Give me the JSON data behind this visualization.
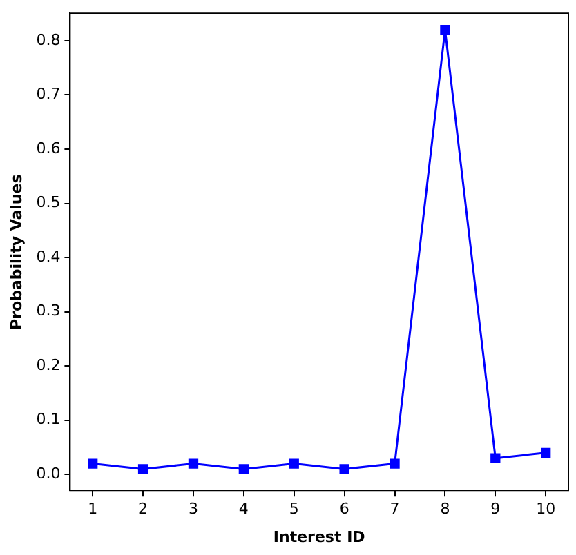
{
  "chart_data": {
    "type": "line",
    "xlabel": "Interest ID",
    "ylabel": "Probability Values",
    "x": [
      1,
      2,
      3,
      4,
      5,
      6,
      7,
      8,
      9,
      10
    ],
    "series": [
      {
        "color": "#0000ff",
        "values": [
          0.02,
          0.01,
          0.02,
          0.01,
          0.02,
          0.01,
          0.02,
          0.82,
          0.03,
          0.04
        ]
      }
    ],
    "xlim": [
      0.55,
      10.45
    ],
    "xticks": [
      1,
      2,
      3,
      4,
      5,
      6,
      7,
      8,
      9,
      10
    ],
    "ylim": [
      -0.0305,
      0.8505
    ],
    "yticks": [
      {
        "value": 0,
        "label": "0.0"
      },
      0.1,
      0.2,
      0.3,
      0.4,
      0.5,
      0.6,
      0.7,
      0.8
    ],
    "marker": "square",
    "line_style": "solid",
    "grid": false,
    "legend": false
  }
}
